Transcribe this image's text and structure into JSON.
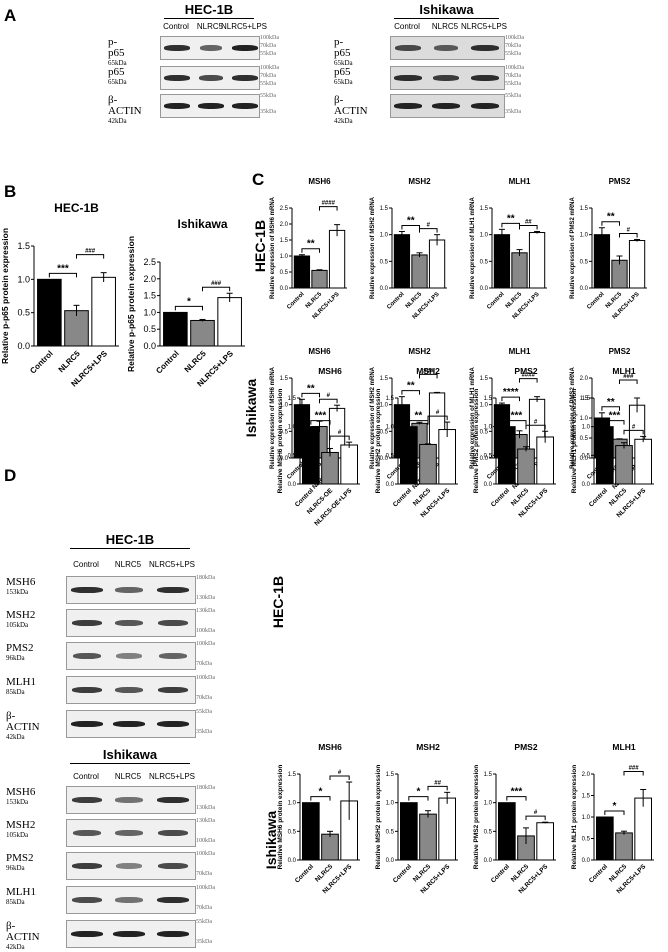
{
  "panels": {
    "A": "A",
    "B": "B",
    "C": "C",
    "D": "D"
  },
  "cell_lines": {
    "hec": "HEC-1B",
    "ish": "Ishikawa"
  },
  "panel_a": {
    "lanes": [
      "Control",
      "NLRC5",
      "NLRC5+LPS"
    ],
    "proteins": [
      {
        "name": "p-p65",
        "kda": "65kDa",
        "mw_top": "100kDa",
        "mw_mid": "70kDa",
        "mw_bot": "55kDa"
      },
      {
        "name": "p65",
        "kda": "65kDa",
        "mw_top": "100kDa",
        "mw_mid": "70kDa",
        "mw_bot": "55kDa"
      },
      {
        "name": "β-ACTIN",
        "kda": "42kDa",
        "mw_top": "55kDa",
        "mw_bot": "35kDa"
      }
    ]
  },
  "panel_d": {
    "lanes": [
      "Control",
      "NLRC5",
      "NLRC5+LPS"
    ],
    "proteins": [
      {
        "name": "MSH6",
        "kda": "153kDa",
        "mw_top": "180kDa",
        "mw_bot": "130kDa"
      },
      {
        "name": "MSH2",
        "kda": "105kDa",
        "mw_top": "130kDa",
        "mw_bot": "100kDa"
      },
      {
        "name": "PMS2",
        "kda": "96kDa",
        "mw_top": "100kDa",
        "mw_bot": "70kDa"
      },
      {
        "name": "MLH1",
        "kda": "85kDa",
        "mw_top": "100kDa",
        "mw_bot": "70kDa"
      },
      {
        "name": "β-ACTIN",
        "kda": "42kDa",
        "mw_top": "55kDa",
        "mw_bot": "35kDa"
      }
    ]
  },
  "chart_data": [
    {
      "id": "B-hec",
      "type": "bar",
      "title": "HEC-1B",
      "ylabel": "Relative p-p65 protein expression",
      "categories": [
        "Control",
        "NLRC5",
        "NLRC5+LPS"
      ],
      "values": [
        1.0,
        0.53,
        1.03
      ],
      "errors": [
        0,
        0.08,
        0.07
      ],
      "ylim": [
        0,
        1.5
      ],
      "yticks": [
        0,
        0.5,
        1.0,
        1.5
      ],
      "sig": [
        {
          "a": 0,
          "b": 1,
          "label": "***",
          "level": 0
        },
        {
          "a": 1,
          "b": 2,
          "label": "###",
          "level": 1
        }
      ]
    },
    {
      "id": "B-ish",
      "type": "bar",
      "title": "Ishikawa",
      "ylabel": "Relative p-p65 protein expression",
      "categories": [
        "Control",
        "NLRC5",
        "NLRC5+LPS"
      ],
      "values": [
        1.0,
        0.76,
        1.44
      ],
      "errors": [
        0,
        0.03,
        0.13
      ],
      "ylim": [
        0,
        2.5
      ],
      "yticks": [
        0,
        0.5,
        1.0,
        1.5,
        2.0,
        2.5
      ],
      "sig": [
        {
          "a": 0,
          "b": 1,
          "label": "*",
          "level": 0
        },
        {
          "a": 1,
          "b": 2,
          "label": "###",
          "level": 0
        }
      ]
    },
    {
      "id": "C-hec-msh6",
      "type": "bar",
      "title": "MSH6",
      "ylabel": "Relative expression of MSH6 mRNA",
      "categories": [
        "Control",
        "NLRC5",
        "NLRC5+LPS"
      ],
      "values": [
        1.0,
        0.55,
        1.8
      ],
      "errors": [
        0.04,
        0.02,
        0.18
      ],
      "ylim": [
        0,
        2.5
      ],
      "yticks": [
        0,
        0.5,
        1.0,
        1.5,
        2.0,
        2.5
      ],
      "sig": [
        {
          "a": 0,
          "b": 1,
          "label": "**",
          "level": 0
        },
        {
          "a": 1,
          "b": 2,
          "label": "####",
          "level": 1
        }
      ]
    },
    {
      "id": "C-hec-msh2",
      "type": "bar",
      "title": "MSH2",
      "ylabel": "Relative expression of MSH2 mRNA",
      "categories": [
        "Control",
        "NLRC5",
        "NLRC5+LPS"
      ],
      "values": [
        1.0,
        0.62,
        0.9
      ],
      "errors": [
        0.06,
        0.04,
        0.1
      ],
      "ylim": [
        0,
        1.5
      ],
      "yticks": [
        0,
        0.5,
        1.0,
        1.5
      ],
      "sig": [
        {
          "a": 0,
          "b": 1,
          "label": "**",
          "level": 0
        },
        {
          "a": 1,
          "b": 2,
          "label": "#",
          "level": 0
        }
      ]
    },
    {
      "id": "C-hec-mlh1",
      "type": "bar",
      "title": "MLH1",
      "ylabel": "Relative expression of MLH1 mRNA",
      "categories": [
        "Control",
        "NLRC5",
        "NLRC5+LPS"
      ],
      "values": [
        1.0,
        0.66,
        1.04
      ],
      "errors": [
        0.1,
        0.06,
        0.02
      ],
      "ylim": [
        0,
        1.5
      ],
      "yticks": [
        0,
        0.5,
        1.0,
        1.5
      ],
      "sig": [
        {
          "a": 0,
          "b": 1,
          "label": "**",
          "level": 0
        },
        {
          "a": 1,
          "b": 2,
          "label": "##",
          "level": 0
        }
      ]
    },
    {
      "id": "C-hec-pms2",
      "type": "bar",
      "title": "PMS2",
      "ylabel": "Relative expression of PMS2 mRNA",
      "categories": [
        "Control",
        "NLRC5",
        "NLRC5+LPS"
      ],
      "values": [
        1.0,
        0.52,
        0.89
      ],
      "errors": [
        0.13,
        0.08,
        0.02
      ],
      "ylim": [
        0,
        1.5
      ],
      "yticks": [
        0,
        0.5,
        1.0,
        1.5
      ],
      "sig": [
        {
          "a": 0,
          "b": 1,
          "label": "**",
          "level": 0
        },
        {
          "a": 1,
          "b": 2,
          "label": "#",
          "level": 0
        }
      ]
    },
    {
      "id": "C-ish-msh6",
      "type": "bar",
      "title": "MSH6",
      "ylabel": "Relative expression of MSH6 mRNA",
      "categories": [
        "Control",
        "NLRC5",
        "NLRC5+LPS"
      ],
      "values": [
        1.0,
        0.59,
        0.93
      ],
      "errors": [
        0.1,
        0.1,
        0.06
      ],
      "ylim": [
        0,
        1.5
      ],
      "yticks": [
        0,
        0.5,
        1.0,
        1.5
      ],
      "sig": [
        {
          "a": 0,
          "b": 1,
          "label": "**",
          "level": 0
        },
        {
          "a": 1,
          "b": 2,
          "label": "#",
          "level": 0
        }
      ]
    },
    {
      "id": "C-ish-msh2",
      "type": "bar",
      "title": "MSH2",
      "ylabel": "Relative expression of MSH2 mRNA",
      "categories": [
        "Control",
        "NLRC5",
        "NLRC5+LPS"
      ],
      "values": [
        1.0,
        0.65,
        1.22
      ],
      "errors": [
        0.15,
        0.02,
        0.01
      ],
      "ylim": [
        0,
        1.5
      ],
      "yticks": [
        0,
        0.5,
        1.0,
        1.5
      ],
      "sig": [
        {
          "a": 0,
          "b": 1,
          "label": "**",
          "level": 0
        },
        {
          "a": 1,
          "b": 2,
          "label": "###",
          "level": 1
        }
      ]
    },
    {
      "id": "C-ish-mlh1",
      "type": "bar",
      "title": "MLH1",
      "ylabel": "Relative expression of MLH1 mRNA",
      "categories": [
        "Control",
        "NLRC5",
        "NLRC5+LPS"
      ],
      "values": [
        1.0,
        0.44,
        1.1
      ],
      "errors": [
        0.03,
        0.07,
        0.05
      ],
      "ylim": [
        0,
        1.5
      ],
      "yticks": [
        0,
        0.5,
        1.0,
        1.5
      ],
      "sig": [
        {
          "a": 0,
          "b": 1,
          "label": "****",
          "level": 0
        },
        {
          "a": 1,
          "b": 2,
          "label": "####",
          "level": 1
        }
      ]
    },
    {
      "id": "C-ish-pms2",
      "type": "bar",
      "title": "PMS2",
      "ylabel": "Relative expression of PMS2 mRNA",
      "categories": [
        "Control",
        "NLRC5",
        "NLRC5+LPS"
      ],
      "values": [
        1.0,
        0.47,
        1.32
      ],
      "errors": [
        0.13,
        0.01,
        0.18
      ],
      "ylim": [
        0,
        2.0
      ],
      "yticks": [
        0,
        0.5,
        1.0,
        1.5,
        2.0
      ],
      "sig": [
        {
          "a": 0,
          "b": 1,
          "label": "**",
          "level": 0
        },
        {
          "a": 1,
          "b": 2,
          "label": "###",
          "level": 1
        }
      ]
    },
    {
      "id": "D-hec-msh6",
      "type": "bar",
      "title": "MSH6",
      "ylabel": "Relative MSH6 protein expression",
      "categories": [
        "Control",
        "NLRC5-OE",
        "NLRC5-OE+LPS"
      ],
      "values": [
        1.0,
        0.55,
        0.68
      ],
      "errors": [
        0,
        0.07,
        0.05
      ],
      "ylim": [
        0,
        1.5
      ],
      "yticks": [
        0,
        0.5,
        1.0,
        1.5
      ],
      "sig": [
        {
          "a": 0,
          "b": 1,
          "label": "***",
          "level": 0
        },
        {
          "a": 1,
          "b": 2,
          "label": "#",
          "level": 0
        }
      ]
    },
    {
      "id": "D-hec-msh2",
      "type": "bar",
      "title": "MSH2",
      "ylabel": "Relative MSH2 protein expression",
      "categories": [
        "Control",
        "NLRC5",
        "NLRC5+LPS"
      ],
      "values": [
        1.0,
        0.69,
        0.95
      ],
      "errors": [
        0,
        0.01,
        0.13
      ],
      "ylim": [
        0,
        1.5
      ],
      "yticks": [
        0,
        0.5,
        1.0,
        1.5
      ],
      "sig": [
        {
          "a": 0,
          "b": 1,
          "label": "**",
          "level": 0
        },
        {
          "a": 1,
          "b": 2,
          "label": "#",
          "level": 0
        }
      ]
    },
    {
      "id": "D-hec-pms2",
      "type": "bar",
      "title": "PMS2",
      "ylabel": "Relative PMS2 protein expression",
      "categories": [
        "Control",
        "NLRC5",
        "NLRC5+LPS"
      ],
      "values": [
        1.0,
        0.61,
        0.82
      ],
      "errors": [
        0,
        0.04,
        0.1
      ],
      "ylim": [
        0,
        1.5
      ],
      "yticks": [
        0,
        0.5,
        1.0,
        1.5
      ],
      "sig": [
        {
          "a": 0,
          "b": 1,
          "label": "***",
          "level": 0
        },
        {
          "a": 1,
          "b": 2,
          "label": "#",
          "level": 0
        }
      ]
    },
    {
      "id": "D-hec-mlh1",
      "type": "bar",
      "title": "MLH1",
      "ylabel": "Relative MLH1 protein expression",
      "categories": [
        "Control",
        "NLRC5",
        "NLRC5+LPS"
      ],
      "values": [
        1.0,
        0.67,
        0.78
      ],
      "errors": [
        0,
        0.05,
        0.05
      ],
      "ylim": [
        0,
        1.5
      ],
      "yticks": [
        0,
        0.5,
        1.0,
        1.5
      ],
      "sig": [
        {
          "a": 0,
          "b": 1,
          "label": "***",
          "level": 0
        },
        {
          "a": 1,
          "b": 2,
          "label": "#",
          "level": 0
        }
      ]
    },
    {
      "id": "D-ish-msh6",
      "type": "bar",
      "title": "MSH6",
      "ylabel": "Relative MSH6 protein expression",
      "categories": [
        "Control",
        "NLRC5",
        "NLRC5+LPS"
      ],
      "values": [
        1.0,
        0.45,
        1.03
      ],
      "errors": [
        0,
        0.05,
        0.33
      ],
      "ylim": [
        0,
        1.5
      ],
      "yticks": [
        0,
        0.5,
        1.0,
        1.5
      ],
      "sig": [
        {
          "a": 0,
          "b": 1,
          "label": "*",
          "level": 0
        },
        {
          "a": 1,
          "b": 2,
          "label": "#",
          "level": 0
        }
      ]
    },
    {
      "id": "D-ish-msh2",
      "type": "bar",
      "title": "MSH2",
      "ylabel": "Relative MSH2 protein expression",
      "categories": [
        "Control",
        "NLRC5",
        "NLRC5+LPS"
      ],
      "values": [
        1.0,
        0.8,
        1.08
      ],
      "errors": [
        0,
        0.06,
        0.1
      ],
      "ylim": [
        0,
        1.5
      ],
      "yticks": [
        0,
        0.5,
        1.0,
        1.5
      ],
      "sig": [
        {
          "a": 0,
          "b": 1,
          "label": "*",
          "level": 0
        },
        {
          "a": 1,
          "b": 2,
          "label": "##",
          "level": 0
        }
      ]
    },
    {
      "id": "D-ish-pms2",
      "type": "bar",
      "title": "PMS2",
      "ylabel": "Relative PMS2 protein expression",
      "categories": [
        "Control",
        "NLRC5",
        "NLRC5+LPS"
      ],
      "values": [
        1.0,
        0.42,
        0.65
      ],
      "errors": [
        0,
        0.14,
        0.01
      ],
      "ylim": [
        0,
        1.5
      ],
      "yticks": [
        0,
        0.5,
        1.0,
        1.5
      ],
      "sig": [
        {
          "a": 0,
          "b": 1,
          "label": "***",
          "level": 0
        },
        {
          "a": 1,
          "b": 2,
          "label": "#",
          "level": 0
        }
      ]
    },
    {
      "id": "D-ish-mlh1",
      "type": "bar",
      "title": "MLH1",
      "ylabel": "Relative MLH1 protein expression",
      "categories": [
        "Control",
        "NLRC5",
        "NLRC5+LPS"
      ],
      "values": [
        1.0,
        0.63,
        1.44
      ],
      "errors": [
        0,
        0.04,
        0.2
      ],
      "ylim": [
        0,
        2.0
      ],
      "yticks": [
        0,
        0.5,
        1.0,
        1.5,
        2.0
      ],
      "sig": [
        {
          "a": 0,
          "b": 1,
          "label": "*",
          "level": 0
        },
        {
          "a": 1,
          "b": 2,
          "label": "###",
          "level": 1
        }
      ]
    }
  ]
}
